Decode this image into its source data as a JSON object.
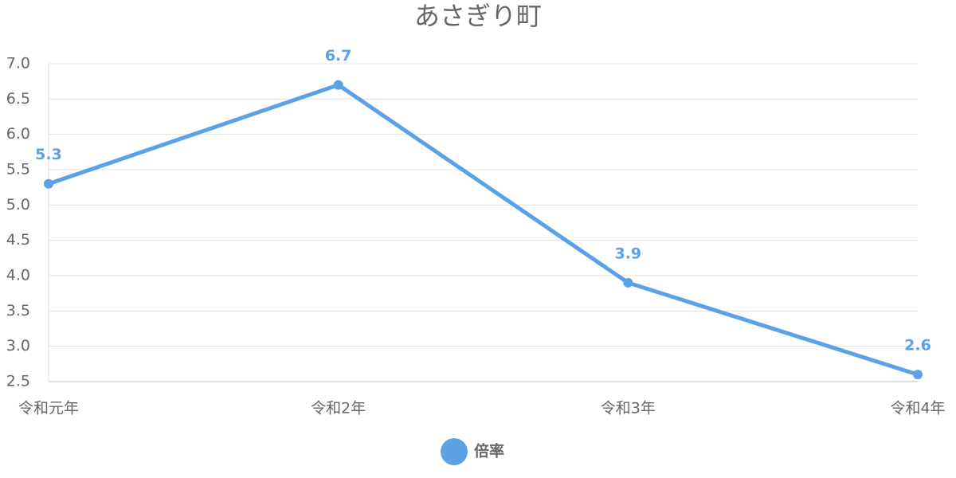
{
  "chart_data": {
    "type": "line",
    "title": "あさぎり町",
    "categories": [
      "令和元年",
      "令和2年",
      "令和3年",
      "令和4年"
    ],
    "series": [
      {
        "name": "倍率",
        "color": "#5aa2e5",
        "values": [
          5.3,
          6.7,
          3.9,
          2.6
        ]
      }
    ],
    "ylim": [
      2.5,
      7.0
    ],
    "yticks": [
      2.5,
      {
        "value": 3.0,
        "label": "3.0"
      },
      3.5,
      {
        "value": 4.0,
        "label": "4.0"
      },
      4.5,
      {
        "value": 5.0,
        "label": "5.0"
      },
      5.5,
      {
        "value": 6.0,
        "label": "6.0"
      },
      6.5,
      {
        "value": 7.0,
        "label": "7.0"
      }
    ],
    "grid": true,
    "legend": "bottom"
  }
}
